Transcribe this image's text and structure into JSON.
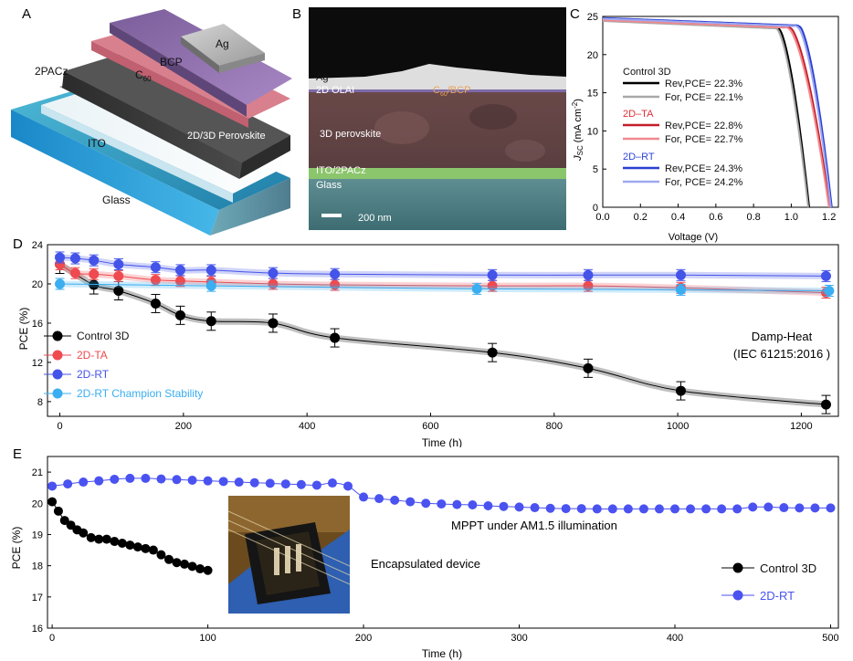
{
  "panels": {
    "a": "A",
    "b": "B",
    "c": "C",
    "d": "D",
    "e": "E"
  },
  "stack": {
    "ag": "Ag",
    "bcp": "BCP",
    "c60": "C",
    "c60_sub": "60",
    "pacz": "2PACz",
    "perovskite": "2D/3D Perovskite",
    "ito": "ITO",
    "glass": "Glass"
  },
  "sem": {
    "ag": "Ag",
    "olai": "2D OLAI",
    "c60bcp_pre": "C",
    "c60bcp_sub": "60",
    "c60bcp_post": "/BCP",
    "perovskite": "3D perovskite",
    "itopacz": "ITO/2PACz",
    "glass": "Glass",
    "scale": "200 nm"
  },
  "chart_data": [
    {
      "type": "line",
      "xlabel": "Voltage (V)",
      "ylabel_main": "J",
      "ylabel_sub": "SC",
      "ylabel_rest": " (mA cm",
      "ylabel_sup": "-2",
      "ylabel_end": ")",
      "xlim": [
        0.0,
        1.25
      ],
      "ylim": [
        0,
        25
      ],
      "xticks": [
        "0.0",
        "0.2",
        "0.4",
        "0.6",
        "0.8",
        "1.0",
        "1.2"
      ],
      "yticks": [
        "0",
        "5",
        "10",
        "15",
        "20",
        "25"
      ],
      "groups": [
        {
          "name": "Control 3D",
          "color": "#111111"
        },
        {
          "name": "2D–TA",
          "color": "#e0303a"
        },
        {
          "name": "2D–RT",
          "color": "#3346d8"
        }
      ],
      "series": [
        {
          "name": "Rev,PCE= 22.3%",
          "color": "#000000",
          "jsc": 24.5,
          "voc": 1.095,
          "knee": 0.93
        },
        {
          "name": "For, PCE= 22.1%",
          "color": "#a8a8a8",
          "jsc": 24.4,
          "voc": 1.09,
          "knee": 0.92
        },
        {
          "name": "Rev,PCE= 22.8%",
          "color": "#c41e2a",
          "jsc": 24.6,
          "voc": 1.205,
          "knee": 0.99
        },
        {
          "name": "For, PCE= 22.7%",
          "color": "#f08a8e",
          "jsc": 24.5,
          "voc": 1.2,
          "knee": 0.98
        },
        {
          "name": "Rev,PCE= 24.3%",
          "color": "#2a3fd0",
          "jsc": 24.8,
          "voc": 1.215,
          "knee": 1.04
        },
        {
          "name": "For, PCE= 24.2%",
          "color": "#9ea8f0",
          "jsc": 24.7,
          "voc": 1.21,
          "knee": 1.03
        }
      ]
    },
    {
      "type": "line",
      "xlabel": "Time (h)",
      "ylabel": "PCE (%)",
      "xlim": [
        -20,
        1260
      ],
      "ylim": [
        6.5,
        24
      ],
      "xticks": [
        "0",
        "200",
        "400",
        "600",
        "800",
        "1000",
        "1200"
      ],
      "yticks": [
        "8",
        "12",
        "16",
        "20",
        "24"
      ],
      "annotation_line1": "Damp-Heat",
      "annotation_line2": "(IEC 61215:2016 )",
      "series": [
        {
          "name": "Control 3D",
          "color": "#000000",
          "x": [
            0,
            55,
            95,
            155,
            195,
            245,
            345,
            445,
            700,
            855,
            1005,
            1240
          ],
          "y": [
            22.0,
            19.9,
            19.3,
            18.0,
            16.8,
            16.2,
            16.0,
            14.5,
            13.0,
            11.4,
            9.1,
            7.7
          ]
        },
        {
          "name": "2D-TA",
          "color": "#ee4a50",
          "x": [
            0,
            25,
            55,
            95,
            155,
            195,
            245,
            345,
            445,
            700,
            855,
            1005,
            1240
          ],
          "y": [
            22.0,
            21.1,
            21.0,
            20.8,
            20.4,
            20.3,
            20.2,
            20.0,
            19.9,
            19.8,
            19.8,
            19.6,
            19.1
          ]
        },
        {
          "name": "2D-RT",
          "color": "#4453e8",
          "x": [
            0,
            25,
            55,
            95,
            155,
            195,
            245,
            345,
            445,
            700,
            855,
            1005,
            1240
          ],
          "y": [
            22.7,
            22.6,
            22.4,
            22.0,
            21.7,
            21.4,
            21.4,
            21.1,
            21.0,
            20.9,
            20.9,
            20.9,
            20.8
          ]
        },
        {
          "name": "2D-RT Champion Stability",
          "color": "#3aaef0",
          "x": [
            0,
            245,
            675,
            1005,
            1245
          ],
          "y": [
            20.0,
            19.8,
            19.5,
            19.4,
            19.3
          ]
        }
      ]
    },
    {
      "type": "line",
      "xlabel": "Time (h)",
      "ylabel": "PCE (%)",
      "xlim": [
        -3,
        505
      ],
      "ylim": [
        16,
        21.5
      ],
      "xticks": [
        "0",
        "100",
        "200",
        "300",
        "400",
        "500"
      ],
      "yticks": [
        "16",
        "17",
        "18",
        "19",
        "20",
        "21"
      ],
      "annotation": "MPPT under AM1.5 illumination",
      "inset_label": "Encapsulated device",
      "series": [
        {
          "name": "Control 3D",
          "color": "#000000",
          "x": [
            0,
            4,
            8,
            12,
            16,
            20,
            25,
            30,
            35,
            40,
            45,
            50,
            55,
            60,
            65,
            70,
            75,
            80,
            85,
            90,
            95,
            100
          ],
          "y": [
            20.05,
            19.75,
            19.45,
            19.3,
            19.15,
            19.05,
            18.9,
            18.85,
            18.85,
            18.78,
            18.72,
            18.66,
            18.6,
            18.55,
            18.5,
            18.35,
            18.2,
            18.1,
            18.05,
            17.98,
            17.9,
            17.85
          ]
        },
        {
          "name": "2D-RT",
          "color": "#4a52f0",
          "x": [
            0,
            10,
            20,
            30,
            40,
            50,
            60,
            70,
            80,
            90,
            100,
            110,
            120,
            130,
            140,
            150,
            160,
            170,
            180,
            190,
            200,
            210,
            220,
            230,
            240,
            250,
            260,
            270,
            280,
            290,
            300,
            310,
            320,
            330,
            340,
            350,
            360,
            370,
            380,
            390,
            400,
            410,
            420,
            430,
            440,
            450,
            460,
            470,
            480,
            490,
            500
          ],
          "y": [
            20.55,
            20.62,
            20.68,
            20.72,
            20.77,
            20.8,
            20.8,
            20.78,
            20.76,
            20.74,
            20.72,
            20.7,
            20.68,
            20.66,
            20.64,
            20.62,
            20.6,
            20.58,
            20.65,
            20.55,
            20.2,
            20.15,
            20.1,
            20.05,
            20.0,
            19.98,
            19.96,
            19.95,
            19.92,
            19.9,
            19.88,
            19.86,
            19.84,
            19.83,
            19.83,
            19.82,
            19.82,
            19.82,
            19.82,
            19.82,
            19.82,
            19.82,
            19.82,
            19.82,
            19.82,
            19.88,
            19.88,
            19.86,
            19.85,
            19.85,
            19.85
          ]
        }
      ]
    }
  ]
}
